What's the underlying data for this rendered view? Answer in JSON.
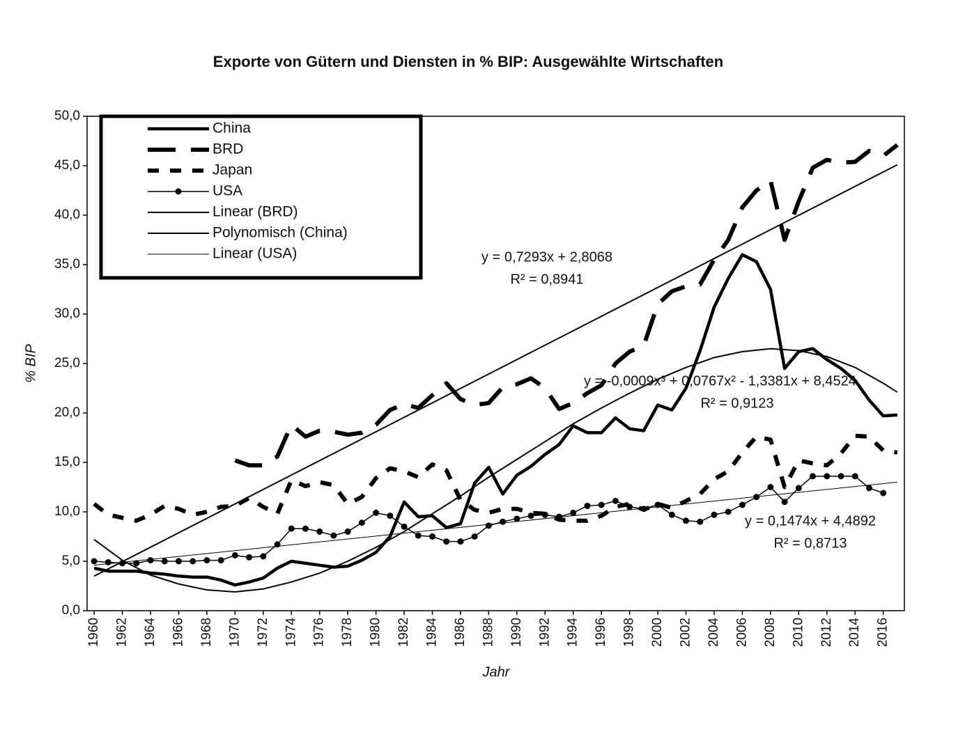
{
  "chart_data": {
    "type": "line",
    "title": "Exporte von Gütern und Diensten in % BIP: Ausgewählte Wirtschaften",
    "x_label": "Jahr",
    "y_label": "% BIP",
    "x": [
      1960,
      1961,
      1962,
      1963,
      1964,
      1965,
      1966,
      1967,
      1968,
      1969,
      1970,
      1971,
      1972,
      1973,
      1974,
      1975,
      1976,
      1977,
      1978,
      1979,
      1980,
      1981,
      1982,
      1983,
      1984,
      1985,
      1986,
      1987,
      1988,
      1989,
      1990,
      1991,
      1992,
      1993,
      1994,
      1995,
      1996,
      1997,
      1998,
      1999,
      2000,
      2001,
      2002,
      2003,
      2004,
      2005,
      2006,
      2007,
      2008,
      2009,
      2010,
      2011,
      2012,
      2013,
      2014,
      2015,
      2016,
      2017
    ],
    "xlim": [
      1959.5,
      2017.5
    ],
    "xticks": [
      1960,
      1962,
      1964,
      1966,
      1968,
      1970,
      1972,
      1974,
      1976,
      1978,
      1980,
      1982,
      1984,
      1986,
      1988,
      1990,
      1992,
      1994,
      1996,
      1998,
      2000,
      2002,
      2004,
      2006,
      2008,
      2010,
      2012,
      2014,
      2016
    ],
    "ylim": [
      0,
      50
    ],
    "yticks": [
      {
        "value": 0,
        "label": "0,0"
      },
      {
        "value": 5,
        "label": "5,0"
      },
      {
        "value": 10,
        "label": "10,0"
      },
      {
        "value": 15,
        "label": "15,0"
      },
      {
        "value": 20,
        "label": "20,0"
      },
      {
        "value": 25,
        "label": "25,0"
      },
      {
        "value": 30,
        "label": "30,0"
      },
      {
        "value": 35,
        "label": "35,0"
      },
      {
        "value": 40,
        "label": "40,0"
      },
      {
        "value": 45,
        "label": "45,0"
      },
      {
        "value": 50,
        "label": "50,0"
      }
    ],
    "grid": false,
    "legend": "top-left",
    "series": [
      {
        "name": "China",
        "color": "#000000",
        "style": "solid",
        "width": 4.5,
        "values": [
          4.3,
          4.0,
          4.0,
          4.0,
          3.8,
          3.7,
          3.5,
          3.4,
          3.4,
          3.1,
          2.6,
          2.9,
          3.3,
          4.3,
          5.0,
          4.8,
          4.6,
          4.4,
          4.5,
          5.1,
          5.9,
          7.5,
          11.0,
          9.5,
          9.6,
          8.4,
          8.8,
          12.9,
          14.5,
          11.8,
          13.7,
          14.6,
          15.8,
          16.8,
          18.7,
          18.0,
          18.0,
          19.5,
          18.4,
          18.2,
          20.8,
          20.3,
          22.5,
          26.3,
          30.7,
          33.6,
          36.0,
          35.3,
          32.5,
          24.5,
          26.2,
          26.5,
          25.4,
          24.5,
          23.3,
          21.3,
          19.7,
          19.8
        ]
      },
      {
        "name": "BRD",
        "color": "#000000",
        "style": "long-dash",
        "width": 6,
        "values": [
          null,
          null,
          null,
          null,
          null,
          null,
          null,
          null,
          null,
          null,
          15.2,
          14.7,
          14.7,
          15.6,
          18.8,
          17.6,
          18.2,
          18.1,
          17.8,
          18.0,
          18.8,
          20.3,
          20.9,
          20.5,
          21.8,
          23.0,
          21.4,
          20.8,
          21.0,
          22.6,
          22.9,
          23.5,
          22.5,
          20.4,
          21.0,
          22.0,
          22.8,
          25.0,
          26.2,
          26.8,
          31.0,
          32.3,
          32.8,
          33.0,
          35.5,
          37.5,
          40.8,
          42.5,
          43.5,
          37.5,
          41.4,
          44.8,
          45.6,
          45.3,
          45.4,
          46.5,
          46.0,
          47.1
        ]
      },
      {
        "name": "Japan",
        "color": "#000000",
        "style": "dash",
        "width": 6,
        "values": [
          10.8,
          9.7,
          9.4,
          9.1,
          9.7,
          10.6,
          10.3,
          9.7,
          10.0,
          10.5,
          10.6,
          11.4,
          10.5,
          9.8,
          13.2,
          12.6,
          13.0,
          12.7,
          10.8,
          11.5,
          13.4,
          14.4,
          14.1,
          13.5,
          14.8,
          14.2,
          11.2,
          10.2,
          9.9,
          10.3,
          10.3,
          9.9,
          9.8,
          9.2,
          9.1,
          9.1,
          9.6,
          10.5,
          10.8,
          10.2,
          10.8,
          10.4,
          11.1,
          11.8,
          13.3,
          14.1,
          16.0,
          17.6,
          17.3,
          12.5,
          15.2,
          14.9,
          14.7,
          15.9,
          17.7,
          17.6,
          16.2,
          16.0
        ]
      },
      {
        "name": "USA",
        "color": "#000000",
        "style": "solid",
        "width": 1.5,
        "marker": "circle",
        "values": [
          5.0,
          4.9,
          4.8,
          4.8,
          5.1,
          5.0,
          5.0,
          5.0,
          5.1,
          5.1,
          5.6,
          5.4,
          5.5,
          6.7,
          8.3,
          8.3,
          8.0,
          7.6,
          8.0,
          8.9,
          9.9,
          9.6,
          8.5,
          7.6,
          7.5,
          7.0,
          7.0,
          7.5,
          8.6,
          9.0,
          9.3,
          9.6,
          9.7,
          9.5,
          9.9,
          10.6,
          10.7,
          11.1,
          10.5,
          10.3,
          10.7,
          9.7,
          9.1,
          9.0,
          9.7,
          10.0,
          10.7,
          11.5,
          12.5,
          11.0,
          12.4,
          13.6,
          13.6,
          13.6,
          13.6,
          12.4,
          11.9,
          null
        ]
      },
      {
        "name": "Linear (BRD)",
        "color": "#000000",
        "style": "solid",
        "width": 2,
        "x": [
          1960,
          2017
        ],
        "values": [
          3.5,
          45.1
        ]
      },
      {
        "name": "Polynomisch (China)",
        "color": "#000000",
        "style": "solid",
        "width": 2,
        "x": [
          1960,
          1962,
          1964,
          1966,
          1968,
          1970,
          1972,
          1974,
          1976,
          1978,
          1980,
          1982,
          1984,
          1986,
          1988,
          1990,
          1992,
          1994,
          1996,
          1998,
          2000,
          2002,
          2004,
          2006,
          2008,
          2010,
          2012,
          2014,
          2016,
          2017
        ],
        "values": [
          7.2,
          5.1,
          3.6,
          2.7,
          2.1,
          1.9,
          2.2,
          2.9,
          3.8,
          5.0,
          6.4,
          8.0,
          9.8,
          11.6,
          13.5,
          15.3,
          17.1,
          18.9,
          20.5,
          22.0,
          23.4,
          24.6,
          25.6,
          26.2,
          26.5,
          26.3,
          25.7,
          24.6,
          23.0,
          22.1
        ]
      },
      {
        "name": "Linear (USA)",
        "color": "#000000",
        "style": "solid",
        "width": 1,
        "x": [
          1960,
          2017
        ],
        "values": [
          4.6,
          13.0
        ]
      }
    ],
    "annotations": [
      "y = 0,7293x + 2,8068",
      "R² = 0,8941",
      "y = -0,0009x³ + 0,0767x² - 1,3381x + 8,4524",
      "R² = 0,9123",
      "y = 0,1474x + 4,4892",
      "R² = 0,8713"
    ]
  }
}
